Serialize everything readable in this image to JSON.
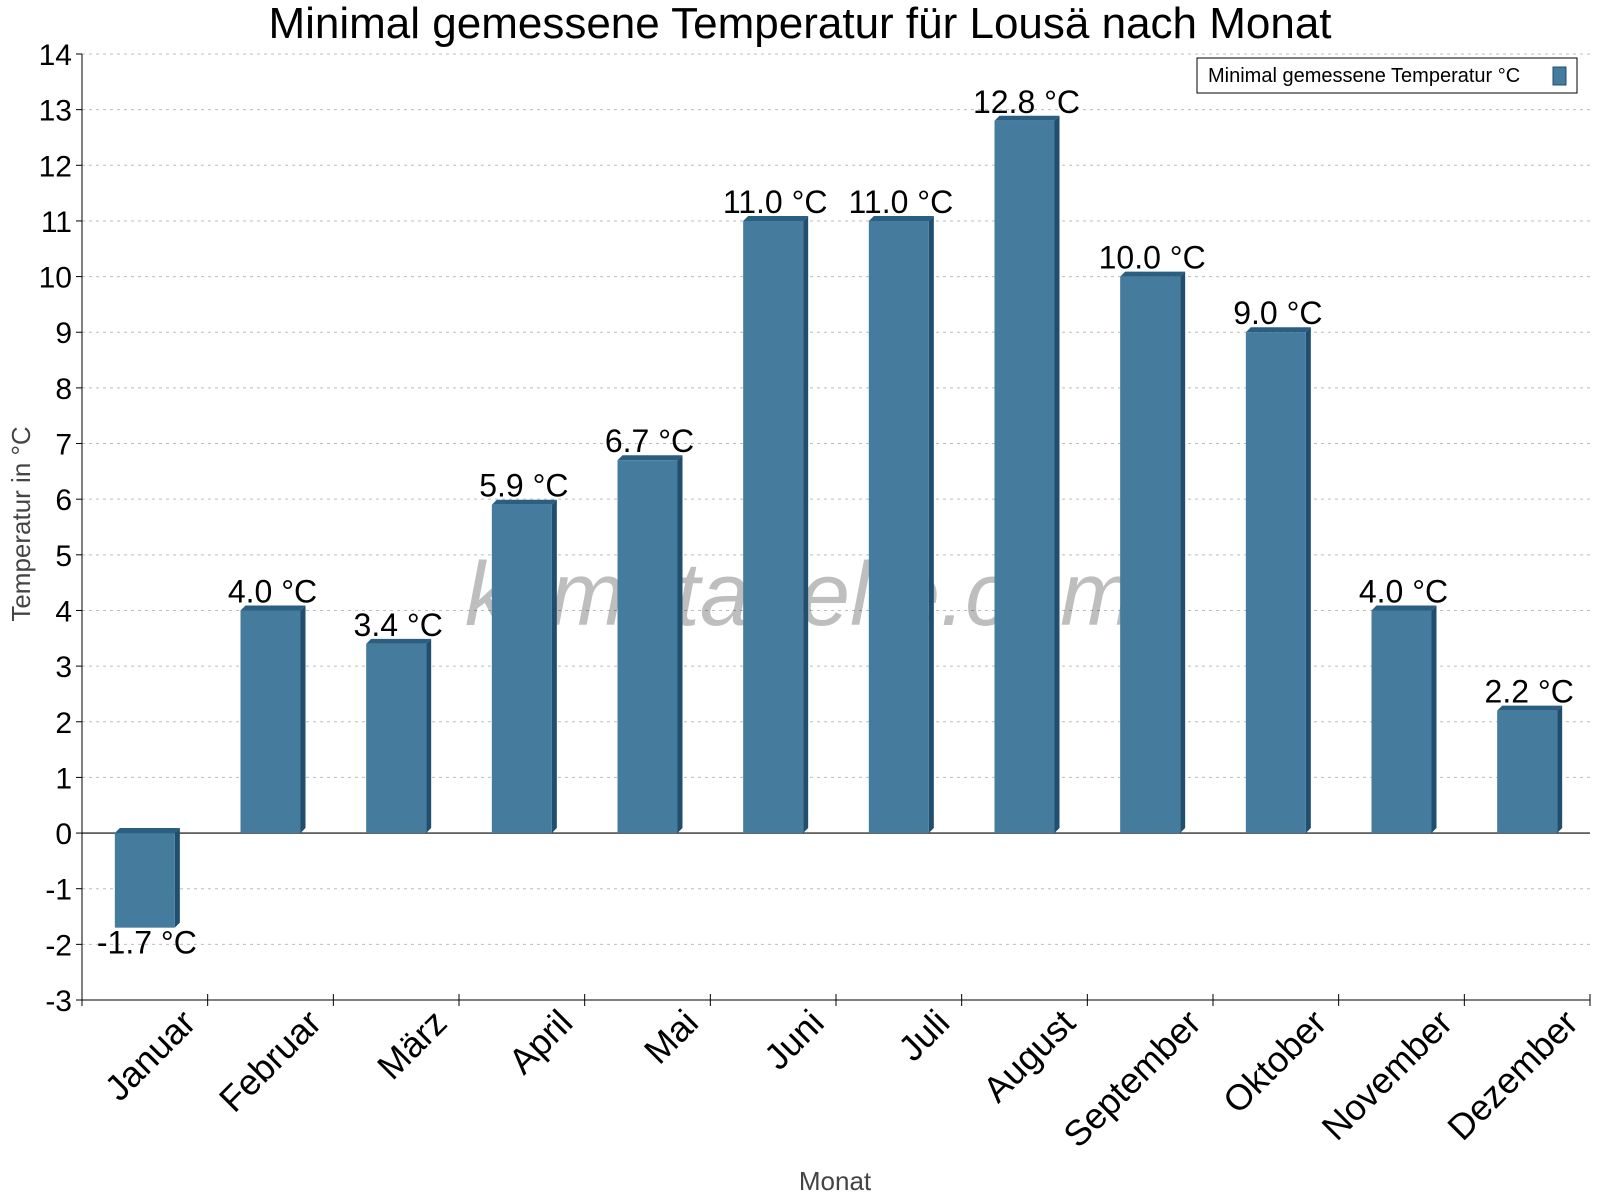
{
  "chart_data": {
    "type": "bar",
    "title": "Minimal gemessene Temperatur für Lousä nach Monat",
    "xlabel": "Monat",
    "ylabel": "Temperatur in °C",
    "ylim": [
      -3,
      14
    ],
    "yticks": [
      -3,
      -2,
      -1,
      0,
      1,
      2,
      3,
      4,
      5,
      6,
      7,
      8,
      9,
      10,
      11,
      12,
      13,
      14
    ],
    "categories": [
      "Januar",
      "Februar",
      "März",
      "April",
      "Mai",
      "Juni",
      "Juli",
      "August",
      "September",
      "Oktober",
      "November",
      "Dezember"
    ],
    "series": [
      {
        "name": "Minimal gemessene Temperatur °C",
        "values": [
          -1.7,
          4.0,
          3.4,
          5.9,
          6.7,
          11.0,
          11.0,
          12.8,
          10.0,
          9.0,
          4.0,
          2.2
        ],
        "labels": [
          "-1.7 °C",
          "4.0 °C",
          "3.4 °C",
          "5.9 °C",
          "6.7 °C",
          "11.0 °C",
          "11.0 °C",
          "12.8 °C",
          "10.0 °C",
          "9.0 °C",
          "4.0 °C",
          "2.2 °C"
        ]
      }
    ],
    "legend": "top-right",
    "grid": true,
    "watermark": "klimatabelle.com",
    "colors": {
      "bar": "#457b9d",
      "bar_side": "#1f4e6e",
      "bar_top": "#2b5f82"
    }
  }
}
